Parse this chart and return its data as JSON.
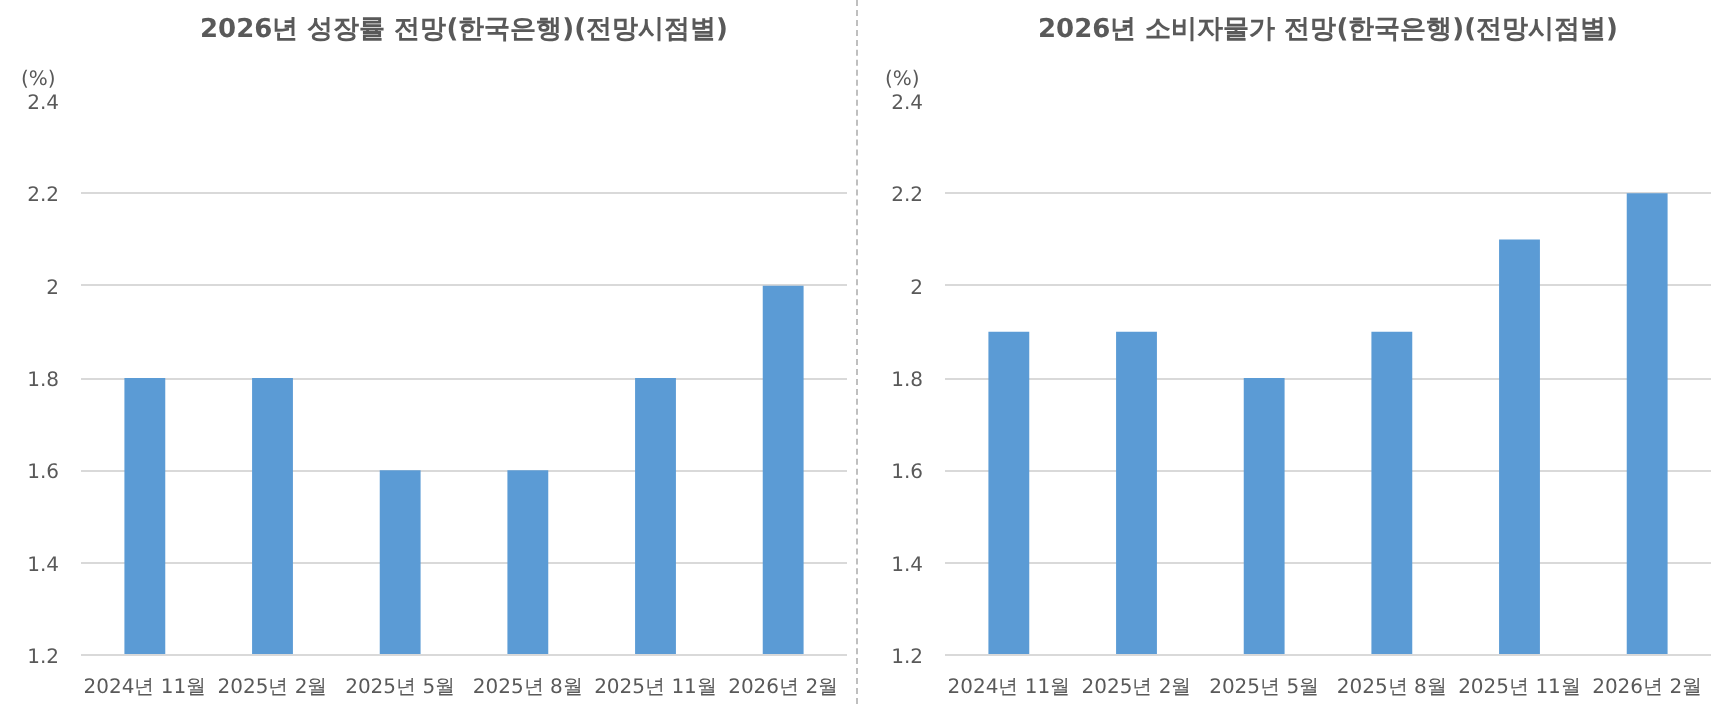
{
  "chart_data": [
    {
      "type": "bar",
      "title": "2026년 성장률 전망(한국은행)(전망시점별)",
      "ylabel": "(%)",
      "categories": [
        "2024년 11월",
        "2025년 2월",
        "2025년 5월",
        "2025년 8월",
        "2025년 11월",
        "2026년 2월"
      ],
      "values": [
        1.8,
        1.8,
        1.6,
        1.6,
        1.8,
        2.0
      ],
      "color": "#5b9bd5",
      "ylim": [
        1.2,
        2.4
      ],
      "yticks": [
        1.2,
        1.4,
        1.6,
        1.8,
        2,
        2.2,
        2.4
      ],
      "grid": "y"
    },
    {
      "type": "bar",
      "title": "2026년 소비자물가 전망(한국은행)(전망시점별)",
      "ylabel": "(%)",
      "categories": [
        "2024년 11월",
        "2025년 2월",
        "2025년 5월",
        "2025년 8월",
        "2025년 11월",
        "2026년 2월"
      ],
      "values": [
        1.9,
        1.9,
        1.8,
        1.9,
        2.1,
        2.2
      ],
      "color": "#5b9bd5",
      "ylim": [
        1.2,
        2.4
      ],
      "yticks": [
        1.2,
        1.4,
        1.6,
        1.8,
        2,
        2.2,
        2.4
      ],
      "grid": "y"
    }
  ]
}
